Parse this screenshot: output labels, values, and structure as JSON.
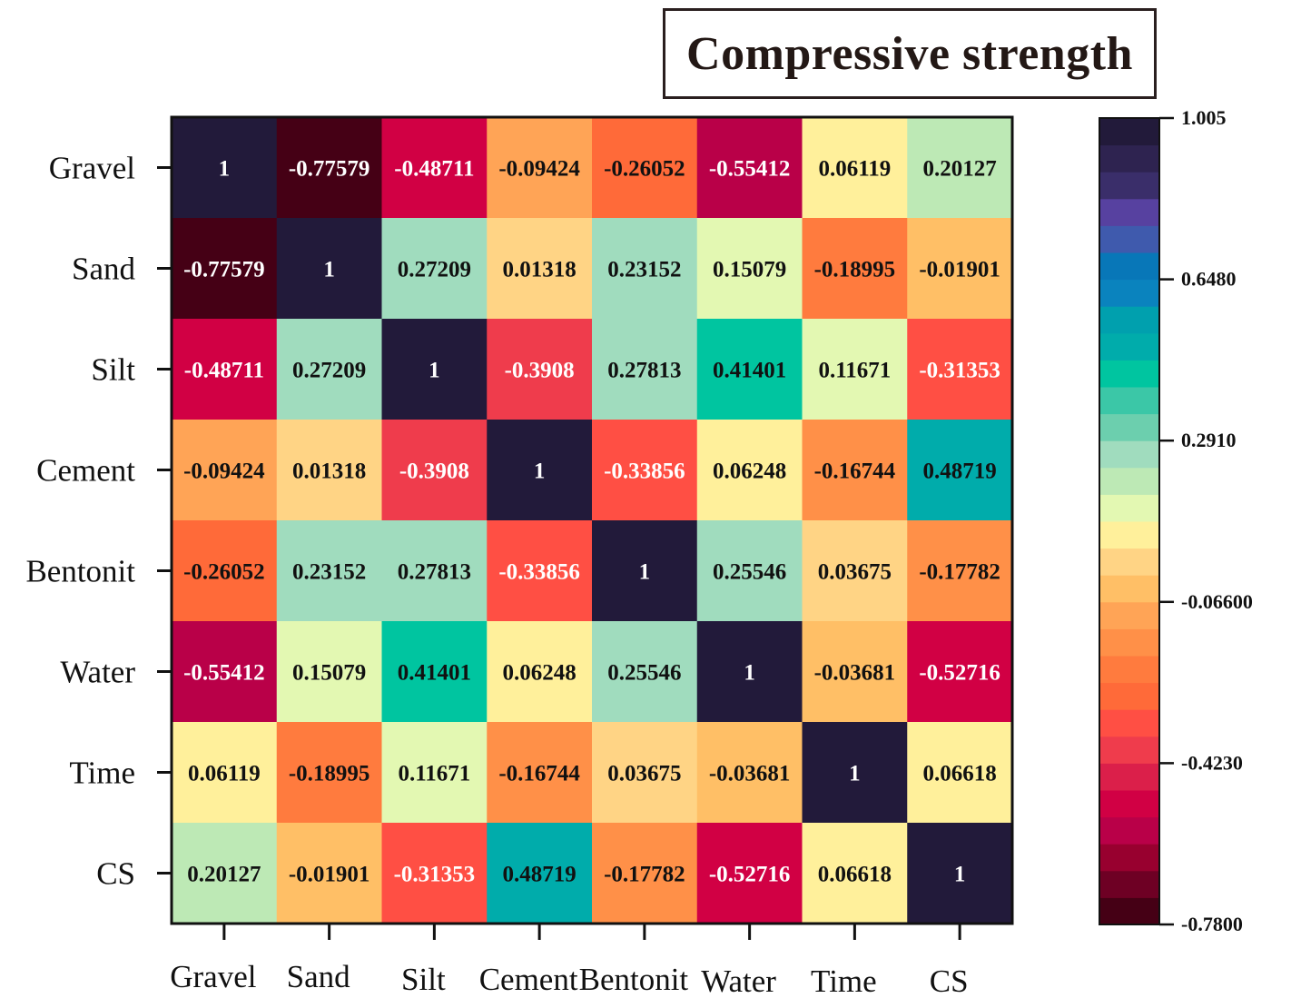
{
  "chart_data": {
    "type": "heatmap",
    "title": "Compressive strength",
    "variables": [
      "Gravel",
      "Sand",
      "Silt",
      "Cement",
      "Bentonit",
      "Water",
      "Time",
      "CS"
    ],
    "x_labels": [
      "Gravel",
      "Sand",
      "Silt",
      "Cement",
      "Bentonit",
      "Water",
      "Time",
      "CS"
    ],
    "y_labels": [
      "Gravel",
      "Sand",
      "Silt",
      "Cement",
      "Bentonit",
      "Water",
      "Time",
      "CS"
    ],
    "matrix": [
      [
        "1",
        "-0.77579",
        "-0.48711",
        "-0.09424",
        "-0.26052",
        "-0.55412",
        "0.06119",
        "0.20127"
      ],
      [
        "-0.77579",
        "1",
        "0.27209",
        "0.01318",
        "0.23152",
        "0.15079",
        "-0.18995",
        "-0.01901"
      ],
      [
        "-0.48711",
        "0.27209",
        "1",
        "-0.3908",
        "0.27813",
        "0.41401",
        "0.11671",
        "-0.31353"
      ],
      [
        "-0.09424",
        "0.01318",
        "-0.3908",
        "1",
        "-0.33856",
        "0.06248",
        "-0.16744",
        "0.48719"
      ],
      [
        "-0.26052",
        "0.23152",
        "0.27813",
        "-0.33856",
        "1",
        "0.25546",
        "0.03675",
        "-0.17782"
      ],
      [
        "-0.55412",
        "0.15079",
        "0.41401",
        "0.06248",
        "0.25546",
        "1",
        "-0.03681",
        "-0.52716"
      ],
      [
        "0.06119",
        "-0.18995",
        "0.11671",
        "-0.16744",
        "0.03675",
        "-0.03681",
        "1",
        "0.06618"
      ],
      [
        "0.20127",
        "-0.01901",
        "-0.31353",
        "0.48719",
        "-0.17782",
        "-0.52716",
        "0.06618",
        "1"
      ]
    ],
    "colorbar": {
      "min": -0.78,
      "max": 1.005,
      "ticks": [
        "1.005",
        "0.6480",
        "0.2910",
        "-0.06600",
        "-0.4230",
        "-0.7800"
      ],
      "tick_values": [
        1.005,
        0.648,
        0.291,
        -0.066,
        -0.423,
        -0.78
      ],
      "levels": 30,
      "colors_low_to_high": [
        "#450015",
        "#6e0024",
        "#98002f",
        "#b90048",
        "#d10044",
        "#db1f4a",
        "#ef3c4c",
        "#ff4f44",
        "#ff6a39",
        "#ff7b3e",
        "#ff9048",
        "#ffa456",
        "#ffbf66",
        "#ffd485",
        "#fff09b",
        "#e3f8b2",
        "#bde9b5",
        "#a0dcbe",
        "#6ccfae",
        "#3bc7a7",
        "#00c5a0",
        "#00acab",
        "#00a0ae",
        "#0a83be",
        "#0877b8",
        "#3f5aad",
        "#5741a0",
        "#3a2e6a",
        "#2e2350",
        "#221a3a"
      ]
    },
    "grid": false,
    "legend": "right"
  }
}
